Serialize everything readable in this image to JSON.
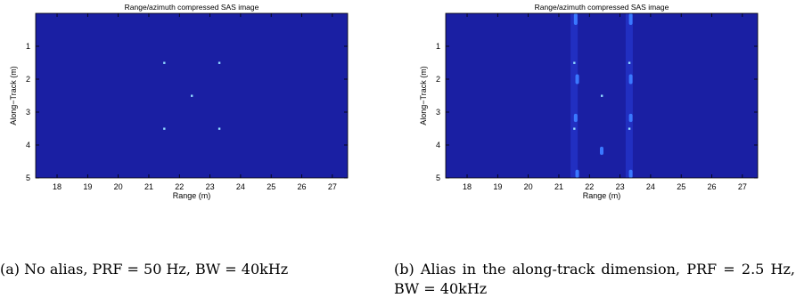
{
  "chart_data": [
    {
      "type": "heatmap",
      "title": "Range/azimuth compressed SAS image",
      "xlabel": "Range (m)",
      "ylabel": "Along−Track (m)",
      "xlim": [
        17.3,
        27.5
      ],
      "ylim": [
        5,
        0
      ],
      "xticks": [
        18,
        19,
        20,
        21,
        22,
        23,
        24,
        25,
        26,
        27
      ],
      "yticks": [
        1,
        2,
        3,
        4,
        5
      ],
      "background": "#1a1fa3",
      "points": [
        {
          "x": 21.5,
          "y": 1.5
        },
        {
          "x": 23.3,
          "y": 1.5
        },
        {
          "x": 22.4,
          "y": 2.5
        },
        {
          "x": 21.5,
          "y": 3.5
        },
        {
          "x": 23.3,
          "y": 3.5
        }
      ],
      "streaks": []
    },
    {
      "type": "heatmap",
      "title": "Range/azimuth compressed SAS image",
      "xlabel": "Range (m)",
      "ylabel": "Along−Track (m)",
      "xlim": [
        17.3,
        27.5
      ],
      "ylim": [
        5,
        0
      ],
      "xticks": [
        18,
        19,
        20,
        21,
        22,
        23,
        24,
        25,
        26,
        27
      ],
      "yticks": [
        1,
        2,
        3,
        4,
        5
      ],
      "background": "#1a1fa3",
      "points": [
        {
          "x": 21.5,
          "y": 1.5
        },
        {
          "x": 23.3,
          "y": 1.5
        },
        {
          "x": 22.4,
          "y": 2.5
        },
        {
          "x": 21.5,
          "y": 3.5
        },
        {
          "x": 23.3,
          "y": 3.5
        }
      ],
      "streaks": [
        {
          "x": 21.55,
          "y0": 0.0,
          "y1": 0.35
        },
        {
          "x": 23.35,
          "y0": 0.0,
          "y1": 0.35
        },
        {
          "x": 21.6,
          "y0": 1.85,
          "y1": 2.15
        },
        {
          "x": 23.35,
          "y0": 1.85,
          "y1": 2.15
        },
        {
          "x": 21.55,
          "y0": 3.05,
          "y1": 3.3
        },
        {
          "x": 23.35,
          "y0": 3.05,
          "y1": 3.3
        },
        {
          "x": 22.4,
          "y0": 4.05,
          "y1": 4.3
        },
        {
          "x": 21.6,
          "y0": 4.75,
          "y1": 5.0
        },
        {
          "x": 23.35,
          "y0": 4.75,
          "y1": 5.0
        }
      ],
      "stripes": [
        21.5,
        23.3
      ]
    }
  ],
  "captions": {
    "a": "(a) No alias, PRF = 50 Hz, BW = 40kHz",
    "b": "(b) Alias in the along-track dimension, PRF = 2.5 Hz, BW = 40kHz"
  },
  "colors": {
    "background": "#1a1fa3",
    "target": "#8fd8ff",
    "streak": "#3a78ff",
    "stripe": "#2333c8"
  }
}
